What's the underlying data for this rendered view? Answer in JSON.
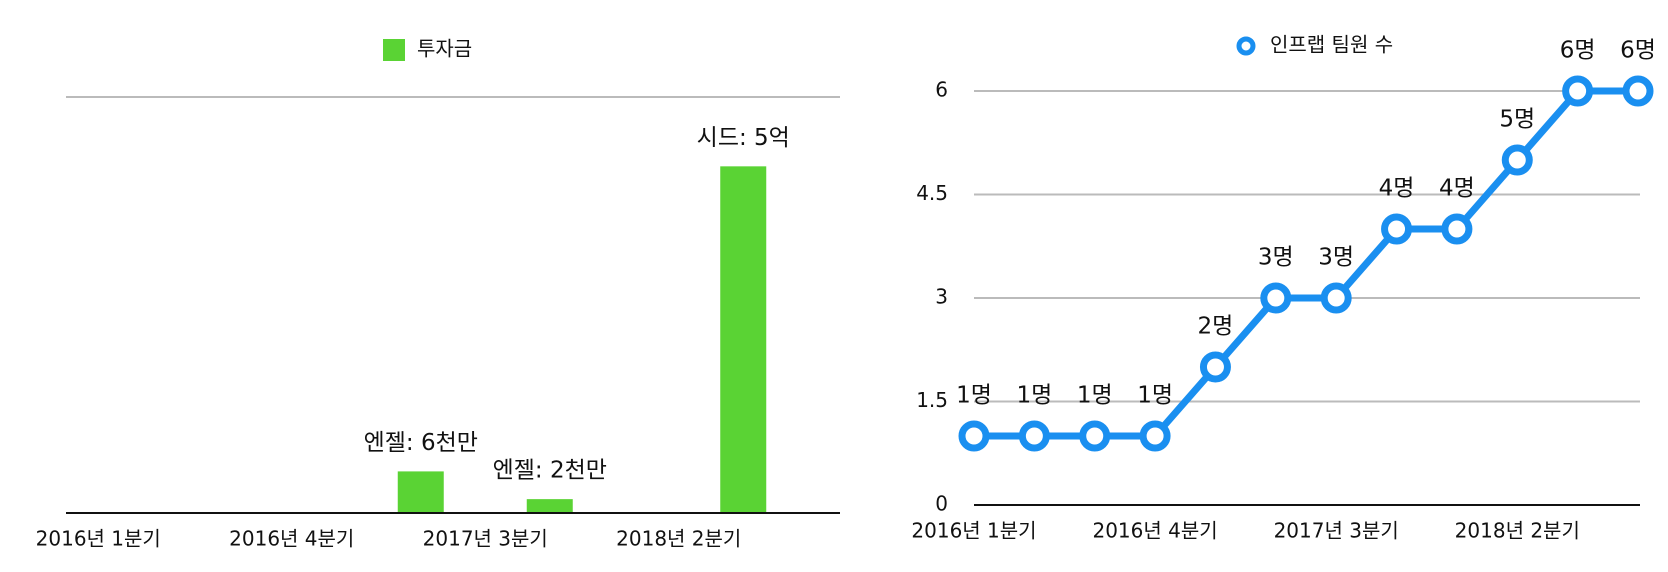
{
  "chart_data": [
    {
      "type": "bar",
      "categories": [
        "2016년 1분기",
        null,
        null,
        "2016년 4분기",
        null,
        null,
        "2017년 3분기",
        null,
        null,
        "2018년 2분기",
        null
      ],
      "series": [
        {
          "name": "투자금",
          "color": "#5ad334",
          "values": [
            null,
            null,
            null,
            null,
            null,
            60000000,
            null,
            20000000,
            null,
            null,
            500000000
          ],
          "value_labels": [
            null,
            null,
            null,
            null,
            null,
            "엔젤: 6천만",
            null,
            "엔젤: 2천만",
            null,
            null,
            "시드: 5억"
          ]
        }
      ],
      "ylim": [
        0,
        600000000
      ],
      "legend": "top"
    },
    {
      "type": "line",
      "categories": [
        "2016년 1분기",
        null,
        null,
        "2016년 4분기",
        null,
        null,
        "2017년 3분기",
        null,
        null,
        "2018년 2분기",
        null,
        null
      ],
      "series": [
        {
          "name": "인프랩 팀원 수",
          "color": "#1a8ff0",
          "values": [
            1,
            1,
            1,
            1,
            2,
            3,
            3,
            4,
            4,
            5,
            6,
            6
          ],
          "value_labels": [
            "1명",
            "1명",
            "1명",
            "1명",
            "2명",
            "3명",
            "3명",
            "4명",
            "4명",
            "5명",
            "6명",
            "6명"
          ]
        }
      ],
      "ylim": [
        0,
        6
      ],
      "yticks": [
        0,
        1.5,
        3,
        4.5,
        6
      ],
      "grid": true,
      "legend": "top"
    }
  ]
}
